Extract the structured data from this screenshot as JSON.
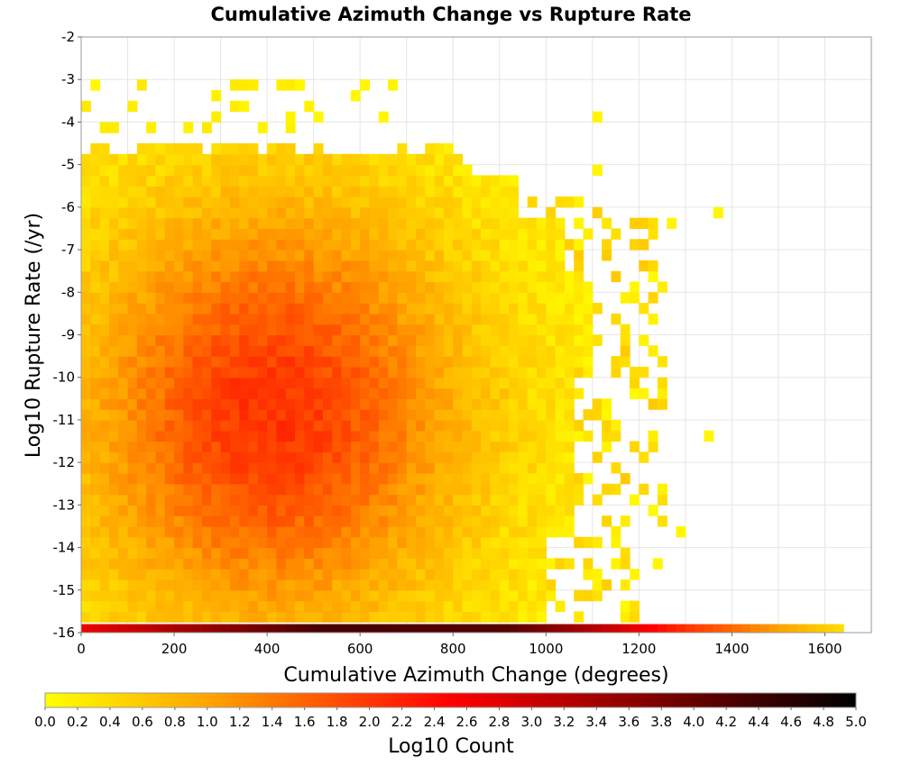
{
  "chart_data": {
    "type": "heatmap",
    "title": "Cumulative Azimuth Change vs Rupture Rate",
    "xlabel": "Cumulative Azimuth Change (degrees)",
    "ylabel": "Log10 Rupture Rate (/yr)",
    "xlim": [
      0,
      1700
    ],
    "ylim": [
      -16,
      -2
    ],
    "x_ticks": [
      0,
      200,
      400,
      600,
      800,
      1000,
      1200,
      1400,
      1600
    ],
    "y_ticks": [
      -2,
      -3,
      -4,
      -5,
      -6,
      -7,
      -8,
      -9,
      -10,
      -11,
      -12,
      -13,
      -14,
      -15,
      -16
    ],
    "bin_width_x": 20,
    "bin_width_y": 0.25,
    "grid": true,
    "colorbar": {
      "label": "Log10 Count",
      "range": [
        0.0,
        5.0
      ],
      "ticks": [
        "0.0",
        "0.2",
        "0.4",
        "0.6",
        "0.8",
        "1.0",
        "1.2",
        "1.4",
        "1.6",
        "1.8",
        "2.0",
        "2.2",
        "2.4",
        "2.6",
        "2.8",
        "3.0",
        "3.2",
        "3.4",
        "3.6",
        "3.8",
        "4.0",
        "4.2",
        "4.4",
        "4.6",
        "4.8",
        "5.0"
      ],
      "colors": [
        "#ffff00",
        "#ffa500",
        "#ff0000",
        "#000000"
      ],
      "placement": "bottom"
    },
    "density_summary": {
      "peak_log10_count_region": {
        "x_range": [
          200,
          600
        ],
        "y_range": [
          -13,
          -9
        ],
        "log10_count": 1.9
      },
      "bottom_row_y": -16,
      "bottom_row_values": [
        {
          "x": 0,
          "log10_count": 2.7
        },
        {
          "x": 500,
          "log10_count": 4.3
        },
        {
          "x": 900,
          "log10_count": 4.2
        },
        {
          "x": 1100,
          "log10_count": 3.2
        },
        {
          "x": 1300,
          "log10_count": 2.0
        },
        {
          "x": 1500,
          "log10_count": 1.0
        },
        {
          "x": 1620,
          "log10_count": 0.4
        }
      ]
    }
  }
}
